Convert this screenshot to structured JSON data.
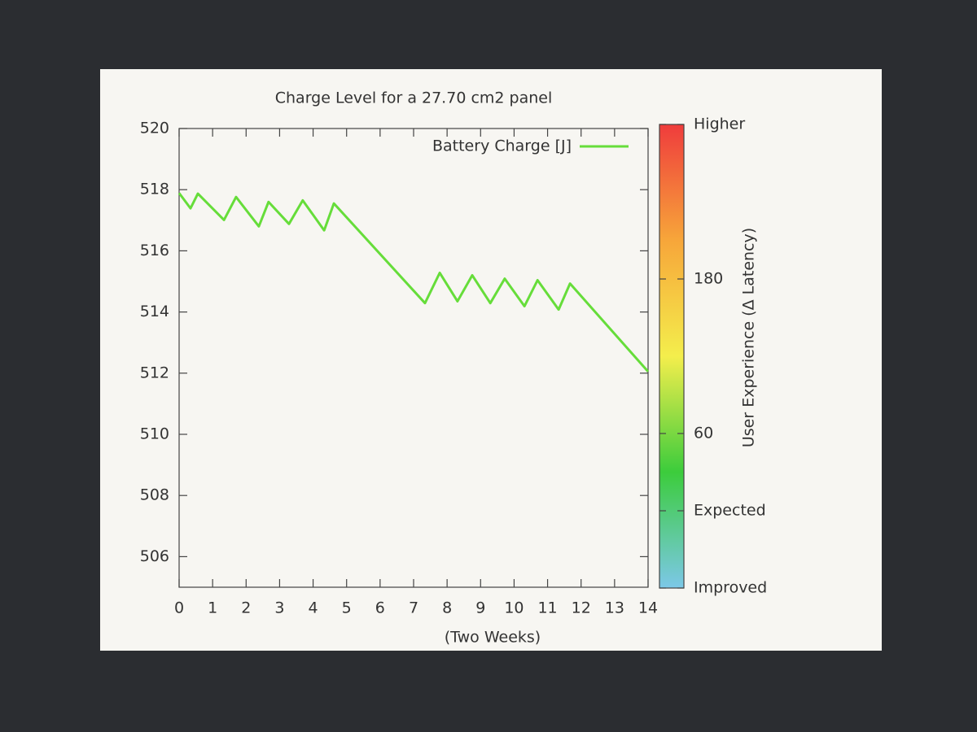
{
  "chart_data": {
    "type": "line",
    "title": "Charge Level for a 27.70 cm2 panel",
    "x_label": "(Two Weeks)",
    "x": [
      0,
      0.34,
      0.56,
      1.34,
      1.7,
      2.38,
      2.67,
      3.28,
      3.69,
      4.33,
      4.62,
      7.34,
      7.78,
      8.31,
      8.75,
      9.29,
      9.72,
      10.31,
      10.7,
      11.33,
      11.67,
      14.0
    ],
    "series": [
      {
        "name": "Battery Charge [J]",
        "color": "#66dd3a",
        "values": [
          517.89,
          517.39,
          517.87,
          517.01,
          517.76,
          516.8,
          517.6,
          516.88,
          517.65,
          516.67,
          517.55,
          514.29,
          515.28,
          514.35,
          515.2,
          514.29,
          515.09,
          514.19,
          515.04,
          514.08,
          514.93,
          512.05
        ]
      }
    ],
    "xlim": [
      0,
      14
    ],
    "xticks": [
      0,
      1,
      2,
      3,
      4,
      5,
      6,
      7,
      8,
      9,
      10,
      11,
      12,
      13,
      14
    ],
    "ylim": [
      505,
      520
    ],
    "yticks": [
      506,
      508,
      510,
      512,
      514,
      516,
      518,
      520
    ],
    "legend": "top-right",
    "colorbar": {
      "label": "User Experience (Δ Latency)",
      "lim": [
        -60,
        300
      ],
      "ticks": [
        {
          "value": -60,
          "label": "Improved"
        },
        {
          "value": 0,
          "label": "Expected"
        },
        60,
        180,
        {
          "value": 300,
          "label": "Higher"
        }
      ],
      "colors": [
        "#7cc8e8",
        "#3ccc3c",
        "#f4ee4c",
        "#f7a63a",
        "#ef3c3c"
      ]
    }
  }
}
